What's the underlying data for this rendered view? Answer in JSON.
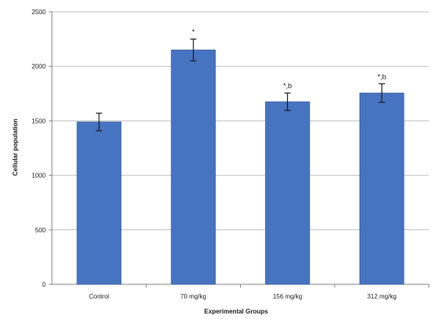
{
  "chart_data": {
    "type": "bar",
    "title": "",
    "xlabel": "Experimental Groups",
    "ylabel": "Cellular population",
    "categories": [
      "Control",
      "70 mg/kg",
      "156 mg/kg",
      "312 mg/kg"
    ],
    "values": [
      1490,
      2150,
      1675,
      1755
    ],
    "error": [
      80,
      100,
      80,
      85
    ],
    "annotations": [
      "",
      "*",
      "*,b",
      "*,b"
    ],
    "ylim": [
      0,
      2500
    ],
    "yticks": [
      0,
      500,
      1000,
      1500,
      2000,
      2500
    ],
    "grid": true,
    "legend": "none"
  },
  "colors": {
    "bar": "#4674c1",
    "bar_edge": "#3a5f9e",
    "grid": "#bfbfbf",
    "axis": "#808080",
    "error_bar": "#1a1a1a"
  }
}
